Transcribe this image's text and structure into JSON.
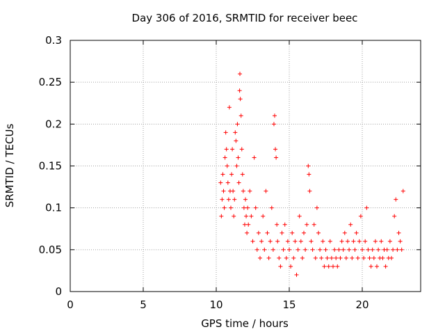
{
  "chart_data": {
    "type": "scatter",
    "title": "Day 306 of 2016, SRMTID for receiver beec",
    "xlabel": "GPS time / hours",
    "ylabel": "SRMTID / TECUs",
    "xlim": [
      0,
      24
    ],
    "ylim": [
      0,
      0.3
    ],
    "x_ticks": [
      0,
      5,
      10,
      15,
      20
    ],
    "x_tick_labels": [
      "0",
      "5",
      "10",
      "15",
      "20"
    ],
    "y_ticks": [
      0,
      0.05,
      0.1,
      0.15,
      0.2,
      0.25,
      0.3
    ],
    "y_tick_labels": [
      "0",
      "0.05",
      "0.1",
      "0.15",
      "0.2",
      "0.25",
      "0.3"
    ],
    "grid": true,
    "marker": "+",
    "series": [
      {
        "name": "SRMTID",
        "color": "#ff0000",
        "points": [
          [
            10.3,
            0.13
          ],
          [
            10.35,
            0.09
          ],
          [
            10.4,
            0.11
          ],
          [
            10.45,
            0.14
          ],
          [
            10.5,
            0.12
          ],
          [
            10.55,
            0.1
          ],
          [
            10.6,
            0.16
          ],
          [
            10.65,
            0.19
          ],
          [
            10.7,
            0.17
          ],
          [
            10.75,
            0.15
          ],
          [
            10.8,
            0.13
          ],
          [
            10.85,
            0.11
          ],
          [
            10.9,
            0.22
          ],
          [
            10.95,
            0.12
          ],
          [
            11.0,
            0.1
          ],
          [
            11.05,
            0.14
          ],
          [
            11.1,
            0.17
          ],
          [
            11.15,
            0.12
          ],
          [
            11.2,
            0.09
          ],
          [
            11.25,
            0.11
          ],
          [
            11.3,
            0.19
          ],
          [
            11.35,
            0.18
          ],
          [
            11.4,
            0.15
          ],
          [
            11.45,
            0.2
          ],
          [
            11.5,
            0.16
          ],
          [
            11.55,
            0.13
          ],
          [
            11.6,
            0.24
          ],
          [
            11.62,
            0.26
          ],
          [
            11.65,
            0.23
          ],
          [
            11.7,
            0.21
          ],
          [
            11.75,
            0.17
          ],
          [
            11.8,
            0.14
          ],
          [
            11.85,
            0.12
          ],
          [
            11.9,
            0.1
          ],
          [
            11.95,
            0.08
          ],
          [
            12.0,
            0.11
          ],
          [
            12.05,
            0.09
          ],
          [
            12.1,
            0.07
          ],
          [
            12.15,
            0.1
          ],
          [
            12.2,
            0.08
          ],
          [
            12.3,
            0.12
          ],
          [
            12.4,
            0.09
          ],
          [
            12.5,
            0.06
          ],
          [
            12.6,
            0.16
          ],
          [
            12.7,
            0.1
          ],
          [
            12.8,
            0.05
          ],
          [
            12.9,
            0.07
          ],
          [
            13.0,
            0.04
          ],
          [
            13.1,
            0.06
          ],
          [
            13.2,
            0.09
          ],
          [
            13.3,
            0.05
          ],
          [
            13.4,
            0.12
          ],
          [
            13.5,
            0.07
          ],
          [
            13.6,
            0.04
          ],
          [
            13.7,
            0.06
          ],
          [
            13.8,
            0.1
          ],
          [
            13.9,
            0.05
          ],
          [
            13.95,
            0.2
          ],
          [
            14.0,
            0.21
          ],
          [
            14.05,
            0.17
          ],
          [
            14.1,
            0.16
          ],
          [
            14.15,
            0.08
          ],
          [
            14.2,
            0.06
          ],
          [
            14.3,
            0.04
          ],
          [
            14.4,
            0.03
          ],
          [
            14.5,
            0.07
          ],
          [
            14.6,
            0.05
          ],
          [
            14.7,
            0.08
          ],
          [
            14.8,
            0.04
          ],
          [
            14.9,
            0.06
          ],
          [
            15.0,
            0.05
          ],
          [
            15.1,
            0.03
          ],
          [
            15.2,
            0.07
          ],
          [
            15.3,
            0.04
          ],
          [
            15.4,
            0.06
          ],
          [
            15.5,
            0.02
          ],
          [
            15.6,
            0.05
          ],
          [
            15.7,
            0.09
          ],
          [
            15.8,
            0.06
          ],
          [
            15.9,
            0.04
          ],
          [
            16.0,
            0.07
          ],
          [
            16.1,
            0.05
          ],
          [
            16.2,
            0.08
          ],
          [
            16.3,
            0.15
          ],
          [
            16.35,
            0.14
          ],
          [
            16.4,
            0.12
          ],
          [
            16.5,
            0.06
          ],
          [
            16.6,
            0.05
          ],
          [
            16.7,
            0.08
          ],
          [
            16.8,
            0.04
          ],
          [
            16.9,
            0.1
          ],
          [
            17.0,
            0.07
          ],
          [
            17.1,
            0.05
          ],
          [
            17.2,
            0.04
          ],
          [
            17.3,
            0.06
          ],
          [
            17.4,
            0.03
          ],
          [
            17.5,
            0.05
          ],
          [
            17.6,
            0.04
          ],
          [
            17.7,
            0.03
          ],
          [
            17.8,
            0.06
          ],
          [
            17.9,
            0.04
          ],
          [
            18.0,
            0.03
          ],
          [
            18.1,
            0.05
          ],
          [
            18.2,
            0.04
          ],
          [
            18.3,
            0.03
          ],
          [
            18.4,
            0.05
          ],
          [
            18.5,
            0.04
          ],
          [
            18.6,
            0.06
          ],
          [
            18.7,
            0.05
          ],
          [
            18.8,
            0.07
          ],
          [
            18.9,
            0.04
          ],
          [
            19.0,
            0.06
          ],
          [
            19.1,
            0.05
          ],
          [
            19.2,
            0.08
          ],
          [
            19.3,
            0.04
          ],
          [
            19.4,
            0.06
          ],
          [
            19.5,
            0.05
          ],
          [
            19.6,
            0.07
          ],
          [
            19.7,
            0.04
          ],
          [
            19.8,
            0.06
          ],
          [
            19.9,
            0.09
          ],
          [
            20.0,
            0.05
          ],
          [
            20.1,
            0.04
          ],
          [
            20.2,
            0.06
          ],
          [
            20.3,
            0.1
          ],
          [
            20.4,
            0.05
          ],
          [
            20.5,
            0.04
          ],
          [
            20.6,
            0.03
          ],
          [
            20.7,
            0.05
          ],
          [
            20.8,
            0.04
          ],
          [
            20.9,
            0.06
          ],
          [
            21.0,
            0.03
          ],
          [
            21.1,
            0.05
          ],
          [
            21.2,
            0.04
          ],
          [
            21.3,
            0.06
          ],
          [
            21.4,
            0.04
          ],
          [
            21.5,
            0.05
          ],
          [
            21.6,
            0.03
          ],
          [
            21.7,
            0.05
          ],
          [
            21.8,
            0.04
          ],
          [
            21.9,
            0.06
          ],
          [
            22.0,
            0.04
          ],
          [
            22.1,
            0.05
          ],
          [
            22.2,
            0.09
          ],
          [
            22.3,
            0.11
          ],
          [
            22.4,
            0.05
          ],
          [
            22.5,
            0.07
          ],
          [
            22.6,
            0.06
          ],
          [
            22.7,
            0.05
          ],
          [
            22.8,
            0.12
          ]
        ]
      }
    ]
  }
}
